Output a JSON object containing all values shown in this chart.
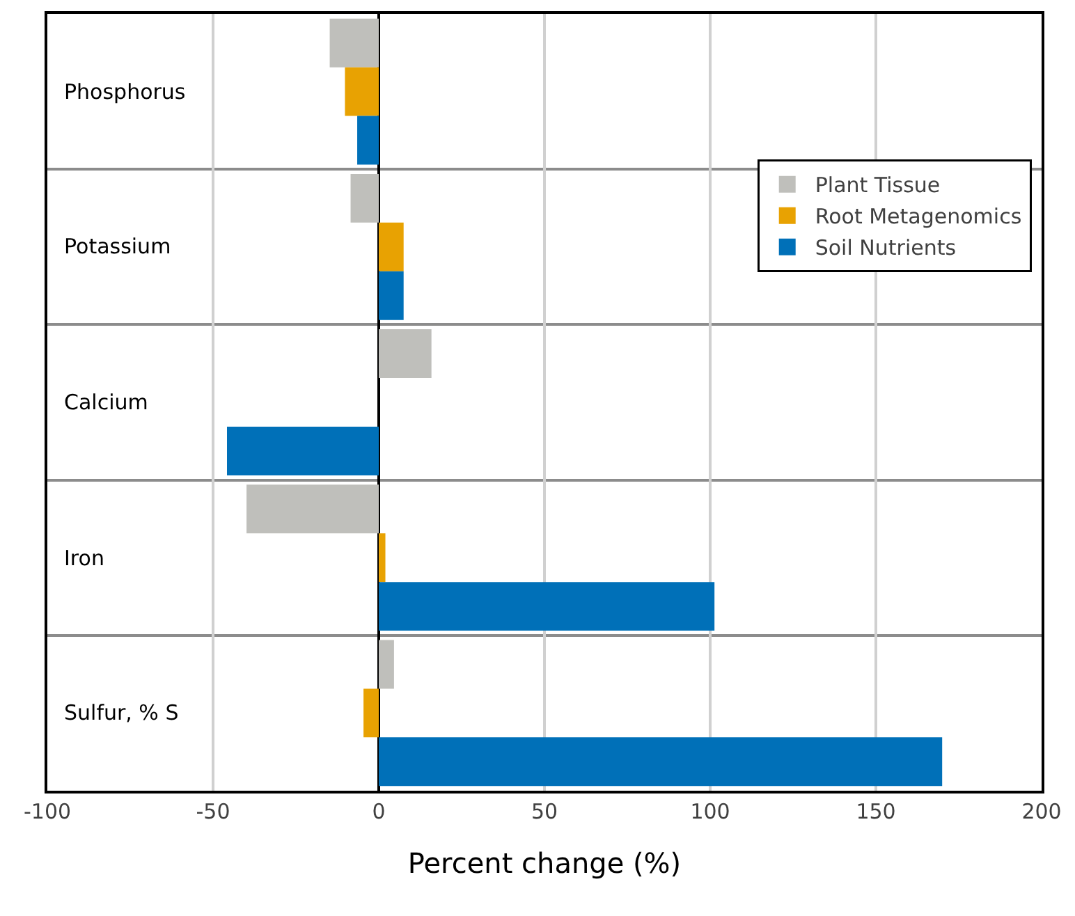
{
  "chart_data": {
    "type": "bar",
    "orientation": "horizontal",
    "xlabel": "Percent change (%)",
    "categories": [
      "Phosphorus",
      "Potassium",
      "Calcium",
      "Iron",
      "Sulfur, % S"
    ],
    "series": [
      {
        "name": "Plant Tissue",
        "color": "#bfbfbb",
        "values": [
          -14.8,
          -8.5,
          15.9,
          -39.9,
          4.6
        ]
      },
      {
        "name": "Root Metagenomics",
        "color": "#e8a202",
        "values": [
          -10.2,
          7.5,
          null,
          2,
          -4.6
        ]
      },
      {
        "name": "Soil Nutrients",
        "color": "#0070b8",
        "values": [
          -6.5,
          7.5,
          -45.8,
          101.3,
          170
        ]
      }
    ],
    "xlim": [
      -100,
      200
    ],
    "xticks": [
      -100,
      -50,
      0,
      50,
      100,
      150,
      200
    ],
    "grid": true,
    "legend": "right"
  }
}
